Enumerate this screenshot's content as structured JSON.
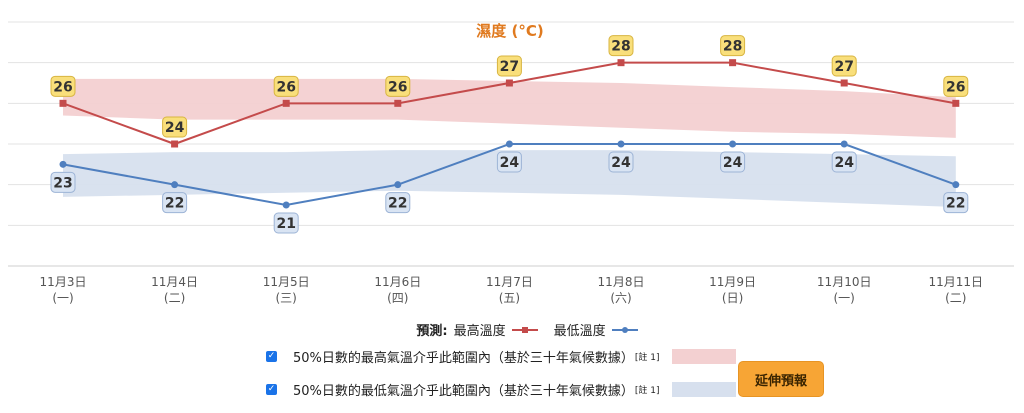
{
  "chart_data": {
    "type": "line",
    "title": "濕度 (°C)",
    "categories": [
      [
        "11月3日",
        "(一)"
      ],
      [
        "11月4日",
        "(二)"
      ],
      [
        "11月5日",
        "(三)"
      ],
      [
        "11月6日",
        "(四)"
      ],
      [
        "11月7日",
        "(五)"
      ],
      [
        "11月8日",
        "(六)"
      ],
      [
        "11月9日",
        "(日)"
      ],
      [
        "11月10日",
        "(一)"
      ],
      [
        "11月11日",
        "(二)"
      ]
    ],
    "series": [
      {
        "name": "最高溫度",
        "values": [
          26,
          24,
          26,
          26,
          27,
          28,
          28,
          27,
          26
        ],
        "color": "#c44b4b",
        "marker": "square",
        "label_bg": "#f9df7b",
        "label_border": "#d8b542"
      },
      {
        "name": "最低溫度",
        "values": [
          23,
          22,
          21,
          22,
          24,
          24,
          24,
          24,
          22
        ],
        "color": "#4f7fbf",
        "marker": "circle",
        "label_bg": "#d9e4f3",
        "label_border": "#9db4d6"
      }
    ],
    "bands": [
      {
        "name": "50%日數的最高氣溫介乎此範圍內",
        "color": "#f3d0d1",
        "low": [
          25.4,
          25.2,
          25.2,
          25.2,
          25.0,
          24.8,
          24.6,
          24.5,
          24.3
        ],
        "high": [
          27.2,
          27.2,
          27.2,
          27.2,
          27.1,
          27.0,
          26.8,
          26.6,
          26.3
        ]
      },
      {
        "name": "50%日數的最低氣溫介乎此範圍內",
        "color": "#d7e0ee",
        "low": [
          21.4,
          21.5,
          21.6,
          21.7,
          21.6,
          21.5,
          21.3,
          21.1,
          20.9
        ],
        "high": [
          23.5,
          23.6,
          23.6,
          23.7,
          23.7,
          23.7,
          23.6,
          23.5,
          23.4
        ]
      }
    ],
    "ylim": [
      18,
      30
    ],
    "grid": true,
    "legend_position": "bottom"
  },
  "legend": {
    "forecast_label": "預測:",
    "max_label": "最高溫度",
    "min_label": "最低溫度",
    "band_max_label": "50%日數的最高氣溫介乎此範圍內（基於三十年氣候數據）",
    "band_min_label": "50%日數的最低氣溫介乎此範圍內（基於三十年氣候數據）",
    "note": "[註 1]"
  },
  "extend_button": "延伸預報"
}
